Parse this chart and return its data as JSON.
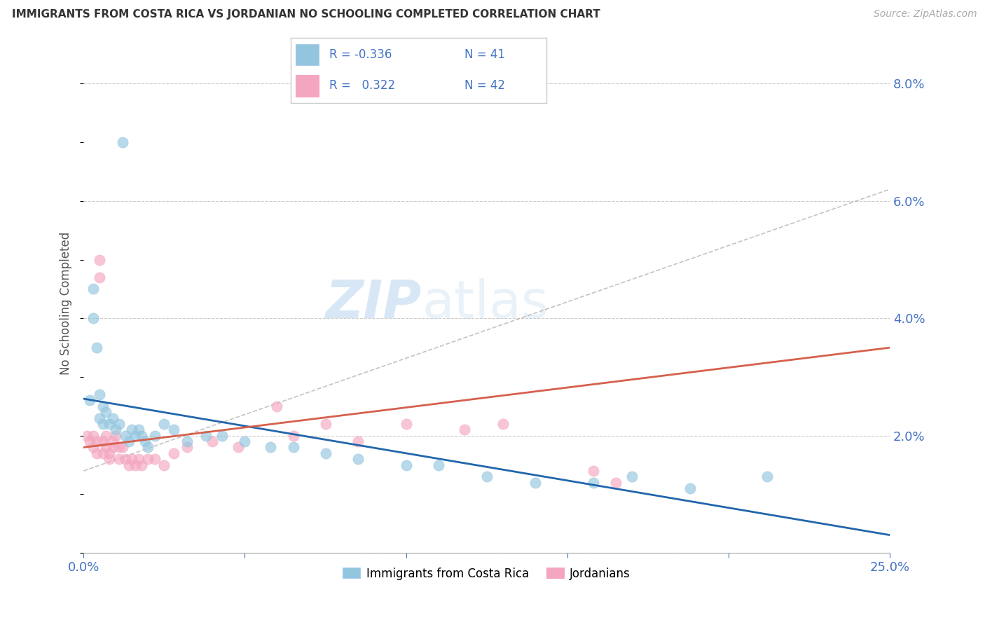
{
  "title": "IMMIGRANTS FROM COSTA RICA VS JORDANIAN NO SCHOOLING COMPLETED CORRELATION CHART",
  "source": "Source: ZipAtlas.com",
  "ylabel": "No Schooling Completed",
  "legend_label_blue": "Immigrants from Costa Rica",
  "legend_label_pink": "Jordanians",
  "blue_color": "#92c5de",
  "pink_color": "#f4a6c0",
  "blue_line_color": "#2166ac",
  "pink_line_color": "#d6604d",
  "text_color": "#4472c4",
  "xmin": 0.0,
  "xmax": 0.25,
  "ymin": 0.0,
  "ymax": 0.085,
  "yticks": [
    0.0,
    0.02,
    0.04,
    0.06,
    0.08
  ],
  "yticklabels": [
    "",
    "2.0%",
    "4.0%",
    "6.0%",
    "8.0%"
  ],
  "xticks": [
    0.0,
    0.05,
    0.1,
    0.15,
    0.2,
    0.25
  ],
  "xticklabels": [
    "0.0%",
    "",
    "",
    "",
    "",
    "25.0%"
  ],
  "blue_R": "-0.336",
  "blue_N": "41",
  "pink_R": "0.322",
  "pink_N": "42",
  "blue_x": [
    0.002,
    0.003,
    0.003,
    0.004,
    0.005,
    0.005,
    0.006,
    0.006,
    0.007,
    0.008,
    0.009,
    0.01,
    0.011,
    0.012,
    0.013,
    0.014,
    0.015,
    0.016,
    0.017,
    0.018,
    0.019,
    0.02,
    0.022,
    0.025,
    0.028,
    0.032,
    0.038,
    0.043,
    0.05,
    0.058,
    0.065,
    0.075,
    0.085,
    0.1,
    0.11,
    0.125,
    0.14,
    0.158,
    0.17,
    0.188,
    0.212
  ],
  "blue_y": [
    0.026,
    0.045,
    0.04,
    0.035,
    0.027,
    0.023,
    0.025,
    0.022,
    0.024,
    0.022,
    0.023,
    0.021,
    0.022,
    0.07,
    0.02,
    0.019,
    0.021,
    0.02,
    0.021,
    0.02,
    0.019,
    0.018,
    0.02,
    0.022,
    0.021,
    0.019,
    0.02,
    0.02,
    0.019,
    0.018,
    0.018,
    0.017,
    0.016,
    0.015,
    0.015,
    0.013,
    0.012,
    0.012,
    0.013,
    0.011,
    0.013
  ],
  "pink_x": [
    0.001,
    0.002,
    0.003,
    0.003,
    0.004,
    0.004,
    0.005,
    0.005,
    0.006,
    0.006,
    0.007,
    0.007,
    0.008,
    0.008,
    0.009,
    0.009,
    0.01,
    0.011,
    0.011,
    0.012,
    0.013,
    0.014,
    0.015,
    0.016,
    0.017,
    0.018,
    0.02,
    0.022,
    0.025,
    0.028,
    0.032,
    0.04,
    0.048,
    0.06,
    0.065,
    0.075,
    0.085,
    0.1,
    0.118,
    0.13,
    0.158,
    0.165
  ],
  "pink_y": [
    0.02,
    0.019,
    0.02,
    0.018,
    0.019,
    0.017,
    0.05,
    0.047,
    0.019,
    0.017,
    0.02,
    0.018,
    0.017,
    0.016,
    0.019,
    0.018,
    0.02,
    0.018,
    0.016,
    0.018,
    0.016,
    0.015,
    0.016,
    0.015,
    0.016,
    0.015,
    0.016,
    0.016,
    0.015,
    0.017,
    0.018,
    0.019,
    0.018,
    0.025,
    0.02,
    0.022,
    0.019,
    0.022,
    0.021,
    0.022,
    0.014,
    0.012
  ]
}
